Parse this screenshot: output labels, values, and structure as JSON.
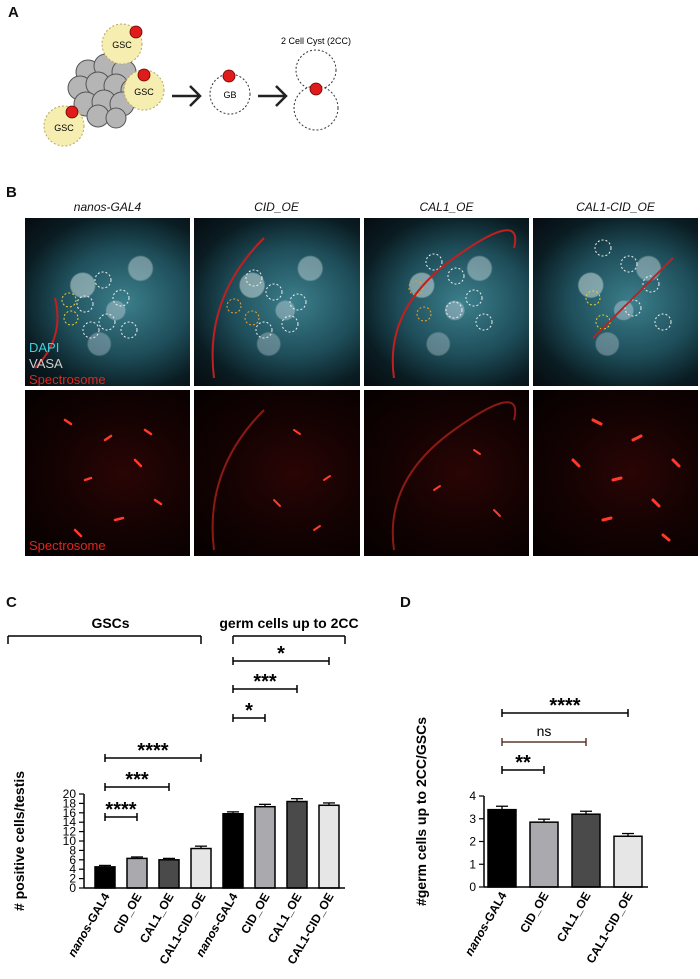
{
  "panel_labels": {
    "a": "A",
    "b": "B",
    "c": "C",
    "d": "D"
  },
  "schematic": {
    "gsc_label": "GSC",
    "gb_label": "GB",
    "cyst_label": "2 Cell Cyst (2CC)"
  },
  "microscopy": {
    "columns": [
      "nanos-GAL4",
      "CID_OE",
      "CAL1_OE",
      "CAL1-CID_OE"
    ],
    "channels": {
      "dapi": "DAPI",
      "vasa": "VASA",
      "spectrosome": "Spectrosome"
    },
    "bottom_label": "Spectrosome",
    "colors": {
      "dapi": "#3fd0e0",
      "vasa": "#cfcfcf",
      "spectrosome": "#e0261f"
    }
  },
  "chart_data": [
    {
      "type": "bar",
      "panel": "C",
      "ylabel": "# positive cells/testis",
      "ylim": [
        0,
        20
      ],
      "yticks": [
        0,
        2,
        4,
        6,
        8,
        10,
        12,
        14,
        16,
        18,
        20
      ],
      "categories": [
        "nanos-GAL4",
        "CID_OE",
        "CAL1_OE",
        "CAL1-CID_OE",
        "nanos-GAL4",
        "CID_OE",
        "CAL1_OE",
        "CAL1-CID_OE"
      ],
      "groups": [
        {
          "name": "GSCs",
          "values": [
            4.5,
            6.3,
            6.0,
            8.4
          ],
          "errors": [
            0.3,
            0.3,
            0.3,
            0.5
          ]
        },
        {
          "name": "germ cells up to 2CC",
          "values": [
            15.8,
            17.3,
            18.4,
            17.6
          ],
          "errors": [
            0.4,
            0.5,
            0.6,
            0.5
          ]
        }
      ],
      "colors": [
        "#000000",
        "#a9a9ae",
        "#4a4a4a",
        "#e6e6e6"
      ],
      "significance": [
        {
          "group": 0,
          "from": 0,
          "to": 1,
          "label": "****"
        },
        {
          "group": 0,
          "from": 0,
          "to": 2,
          "label": "***"
        },
        {
          "group": 0,
          "from": 0,
          "to": 3,
          "label": "****"
        },
        {
          "group": 1,
          "from": 0,
          "to": 1,
          "label": "*"
        },
        {
          "group": 1,
          "from": 0,
          "to": 2,
          "label": "***"
        },
        {
          "group": 1,
          "from": 0,
          "to": 3,
          "label": "*"
        }
      ]
    },
    {
      "type": "bar",
      "panel": "D",
      "ylabel": "#germ cells up to 2CC/GSCs",
      "ylim": [
        0,
        4
      ],
      "yticks": [
        0,
        1,
        2,
        3,
        4
      ],
      "categories": [
        "nanos-GAL4",
        "CID_OE",
        "CAL1_OE",
        "CAL1-CID_OE"
      ],
      "values": [
        3.4,
        2.85,
        3.2,
        2.23
      ],
      "errors": [
        0.15,
        0.13,
        0.13,
        0.12
      ],
      "colors": [
        "#000000",
        "#a9a9ae",
        "#4a4a4a",
        "#e6e6e6"
      ],
      "significance": [
        {
          "from": 0,
          "to": 1,
          "label": "**"
        },
        {
          "from": 0,
          "to": 2,
          "label": "ns"
        },
        {
          "from": 0,
          "to": 3,
          "label": "****"
        }
      ]
    }
  ]
}
